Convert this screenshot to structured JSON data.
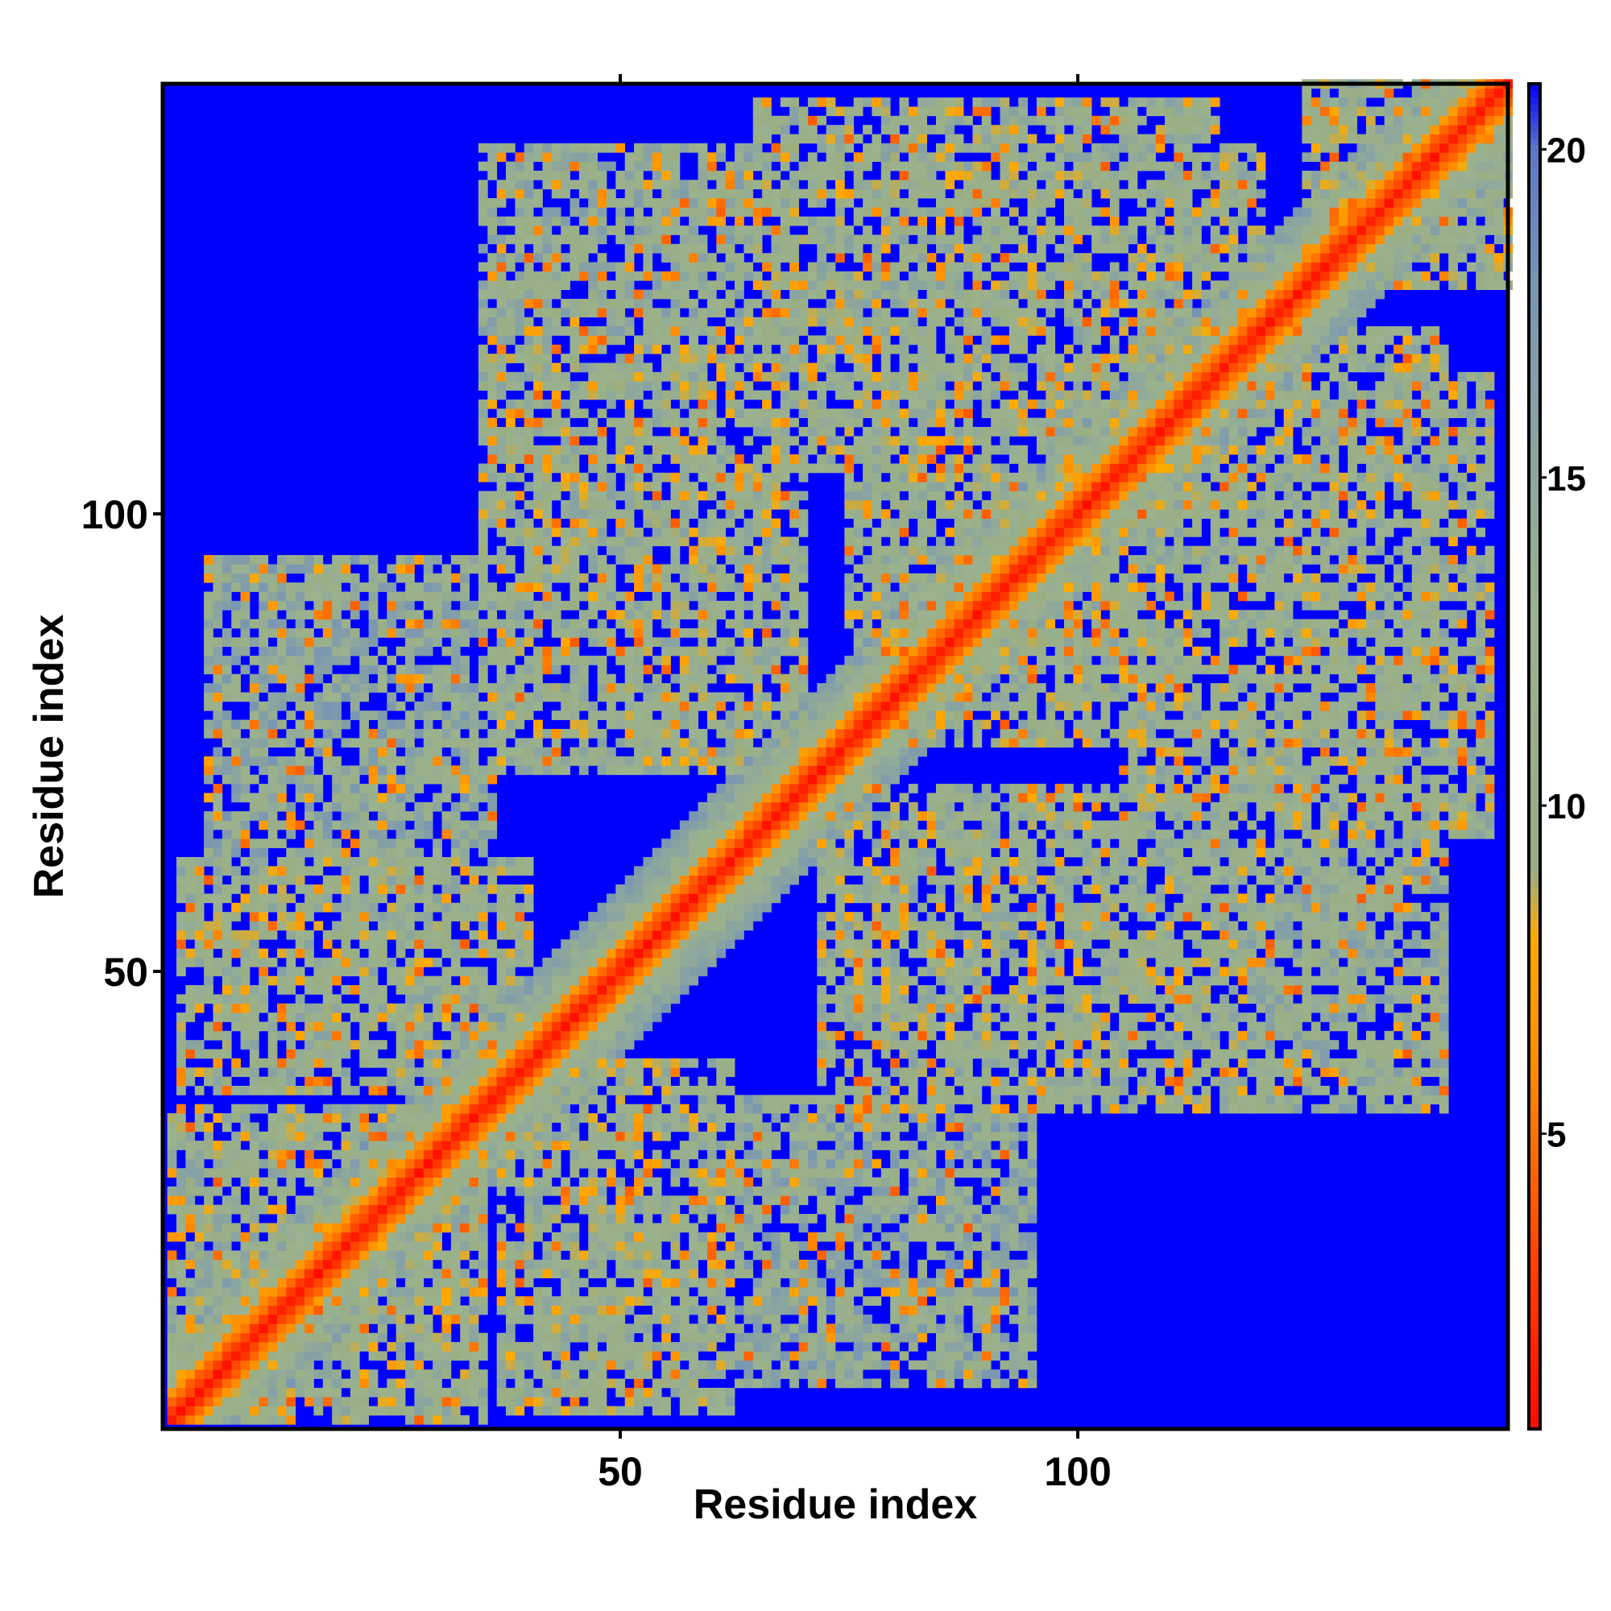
{
  "chart_data": {
    "type": "heatmap",
    "description_of_values": "pairwise residue distance map (symmetric)",
    "xlabel": "Residue index",
    "ylabel": "Residue index",
    "xlim": [
      1,
      147
    ],
    "ylim": [
      1,
      147
    ],
    "x_ticks": [
      50,
      100
    ],
    "y_ticks": [
      50,
      100
    ],
    "colorbar": {
      "range": [
        0.5,
        21
      ],
      "ticks": [
        5,
        10,
        15,
        20
      ],
      "stops": [
        {
          "value": 0,
          "color": "#ff0000"
        },
        {
          "value": 3,
          "color": "#ff4000"
        },
        {
          "value": 6,
          "color": "#ff8c00"
        },
        {
          "value": 8,
          "color": "#ffaa00"
        },
        {
          "value": 9,
          "color": "#9aae84"
        },
        {
          "value": 13,
          "color": "#9bb28e"
        },
        {
          "value": 18,
          "color": "#7895b4"
        },
        {
          "value": 20,
          "color": "#5a78c8"
        },
        {
          "value": 21,
          "color": "#0000ff"
        }
      ]
    },
    "background_value": 21,
    "structure": {
      "diagonal": {
        "near_value": 0.5,
        "band_width": 3
      },
      "contact_blocks": [
        {
          "x_center": 20,
          "y_center": 70,
          "x_range": [
            5,
            36
          ],
          "y_range": [
            40,
            95
          ],
          "mean_value": 13
        },
        {
          "x_center": 50,
          "y_center": 110,
          "x_range": [
            35,
            65
          ],
          "y_range": [
            75,
            140
          ],
          "mean_value": 12
        },
        {
          "x_center": 95,
          "y_center": 115,
          "x_range": [
            75,
            120
          ],
          "y_range": [
            80,
            140
          ],
          "mean_value": 11
        },
        {
          "x_center": 130,
          "y_center": 90,
          "x_range": [
            105,
            145
          ],
          "y_range": [
            65,
            115
          ],
          "mean_value": 11
        },
        {
          "x_center": 90,
          "y_center": 50,
          "x_range": [
            72,
            118
          ],
          "y_range": [
            35,
            70
          ],
          "mean_value": 11
        },
        {
          "x_center": 120,
          "y_center": 45,
          "x_range": [
            100,
            140
          ],
          "y_range": [
            35,
            65
          ],
          "mean_value": 14
        },
        {
          "x_center": 50,
          "y_center": 20,
          "x_range": [
            37,
            62
          ],
          "y_range": [
            2,
            40
          ],
          "mean_value": 11
        },
        {
          "x_center": 85,
          "y_center": 20,
          "x_range": [
            75,
            95
          ],
          "y_range": [
            5,
            40
          ],
          "mean_value": 14
        },
        {
          "x_center": 15,
          "y_center": 15,
          "x_range": [
            1,
            35
          ],
          "y_range": [
            1,
            35
          ],
          "mean_value": 11
        },
        {
          "x_center": 140,
          "y_center": 140,
          "x_range": [
            125,
            147
          ],
          "y_range": [
            125,
            147
          ],
          "mean_value": 11
        }
      ]
    }
  }
}
